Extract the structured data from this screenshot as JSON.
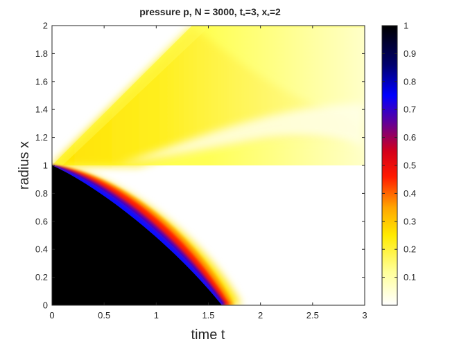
{
  "chart_data": {
    "type": "heatmap",
    "title": "pressure p, N = 3000, t",
    "title_parts": {
      "main": "pressure p, N = 3000, t",
      "sub1": "*",
      "mid": "=3, x",
      "sub2": "*",
      "end": "=2"
    },
    "xlabel": "time t",
    "ylabel": "radius x",
    "xlim": [
      0,
      3
    ],
    "ylim": [
      0,
      2
    ],
    "clim": [
      0,
      1
    ],
    "xticks": [
      0,
      0.5,
      1,
      1.5,
      2,
      2.5,
      3
    ],
    "xtick_labels": [
      "0",
      "0.5",
      "1",
      "1.5",
      "2",
      "2.5",
      "3"
    ],
    "yticks": [
      0,
      0.2,
      0.4,
      0.6,
      0.8,
      1,
      1.2,
      1.4,
      1.6,
      1.8,
      2
    ],
    "ytick_labels": [
      "0",
      "0.2",
      "0.4",
      "0.6",
      "0.8",
      "1",
      "1.2",
      "1.4",
      "1.6",
      "1.8",
      "2"
    ],
    "colorbar_ticks": [
      0.1,
      0.2,
      0.3,
      0.4,
      0.5,
      0.6,
      0.7,
      0.8,
      0.9,
      1
    ],
    "colorbar_tick_labels": [
      "0.1",
      "0.2",
      "0.3",
      "0.4",
      "0.5",
      "0.6",
      "0.7",
      "0.8",
      "0.9",
      "1"
    ],
    "colormap": "inverted hot (white-yellow-orange-red-blue-black)",
    "colormap_stops": [
      "#ffffff",
      "#ffff99",
      "#ffea00",
      "#ffa500",
      "#ff1a00",
      "#d4001a",
      "#5a00a0",
      "#0000ff",
      "#00006e",
      "#000000"
    ],
    "features": {
      "expansion_fan_origin": [
        0,
        1
      ],
      "upper_wedge_edge_slope": 1,
      "front_end_time": 1.7,
      "right_edge_light_region_x": [
        1.1,
        2
      ]
    }
  }
}
